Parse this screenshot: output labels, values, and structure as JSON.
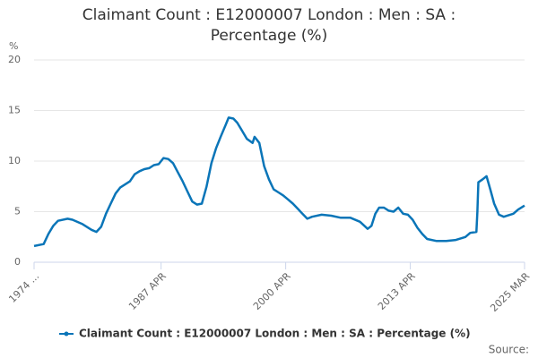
{
  "chart_data": {
    "type": "line",
    "title": "Claimant Count : E12000007 London : Men : SA : Percentage (%)",
    "y_label": "%",
    "source": "Source:",
    "xlim": [
      1974,
      2025.17
    ],
    "xticks": [
      {
        "value": 1974,
        "label": "1974 ..."
      },
      {
        "value": 1987.25,
        "label": "1987 APR"
      },
      {
        "value": 2000.25,
        "label": "2000 APR"
      },
      {
        "value": 2013.25,
        "label": "2013 APR"
      },
      {
        "value": 2025.17,
        "label": "2025 MAR"
      }
    ],
    "ylim": [
      0,
      20
    ],
    "yticks": [
      0,
      5,
      10,
      15,
      20
    ],
    "grid": true,
    "legend": "bottom",
    "series": [
      {
        "name": "Claimant Count : E12000007 London : Men : SA : Percentage (%)",
        "color": "#0a75b8",
        "x": [
          1974.0,
          1975.0,
          1975.5,
          1976.0,
          1976.5,
          1977.5,
          1978.0,
          1979.0,
          1980.0,
          1980.5,
          1981.0,
          1981.5,
          1982.0,
          1982.5,
          1983.0,
          1984.0,
          1984.5,
          1985.0,
          1985.5,
          1986.0,
          1986.5,
          1987.0,
          1987.5,
          1988.0,
          1988.5,
          1989.0,
          1989.5,
          1990.0,
          1990.5,
          1991.0,
          1991.5,
          1992.0,
          1992.5,
          1993.0,
          1993.5,
          1994.0,
          1994.3,
          1994.8,
          1995.2,
          1995.7,
          1996.2,
          1996.8,
          1997.0,
          1997.5,
          1998.0,
          1998.5,
          1999.0,
          1999.5,
          2000.0,
          2000.5,
          2001.0,
          2001.5,
          2002.0,
          2002.5,
          2003.0,
          2004.0,
          2005.0,
          2006.0,
          2007.0,
          2008.0,
          2008.8,
          2009.2,
          2009.6,
          2010.0,
          2010.5,
          2011.0,
          2011.5,
          2012.0,
          2012.5,
          2013.0,
          2013.5,
          2014.0,
          2014.5,
          2015.0,
          2016.0,
          2017.0,
          2018.0,
          2019.0,
          2019.5,
          2020.15,
          2020.25,
          2020.35,
          2020.8,
          2021.2,
          2021.6,
          2022.0,
          2022.5,
          2023.0,
          2024.0,
          2024.5,
          2025.17
        ],
        "values": [
          1.6,
          1.8,
          2.8,
          3.6,
          4.1,
          4.3,
          4.2,
          3.8,
          3.2,
          3.0,
          3.5,
          4.8,
          5.8,
          6.8,
          7.4,
          8.0,
          8.7,
          9.0,
          9.2,
          9.3,
          9.6,
          9.7,
          10.3,
          10.2,
          9.8,
          8.9,
          8.0,
          7.0,
          6.0,
          5.7,
          5.8,
          7.5,
          9.8,
          11.3,
          12.5,
          13.6,
          14.3,
          14.2,
          13.8,
          13.0,
          12.2,
          11.8,
          12.4,
          11.8,
          9.5,
          8.2,
          7.2,
          6.9,
          6.6,
          6.2,
          5.8,
          5.3,
          4.8,
          4.3,
          4.5,
          4.7,
          4.6,
          4.4,
          4.4,
          4.0,
          3.3,
          3.6,
          4.8,
          5.4,
          5.4,
          5.1,
          5.0,
          5.4,
          4.8,
          4.7,
          4.2,
          3.4,
          2.8,
          2.3,
          2.1,
          2.1,
          2.2,
          2.5,
          2.9,
          3.0,
          5.0,
          7.9,
          8.2,
          8.5,
          7.2,
          5.8,
          4.7,
          4.5,
          4.8,
          5.2,
          5.6
        ]
      }
    ]
  }
}
